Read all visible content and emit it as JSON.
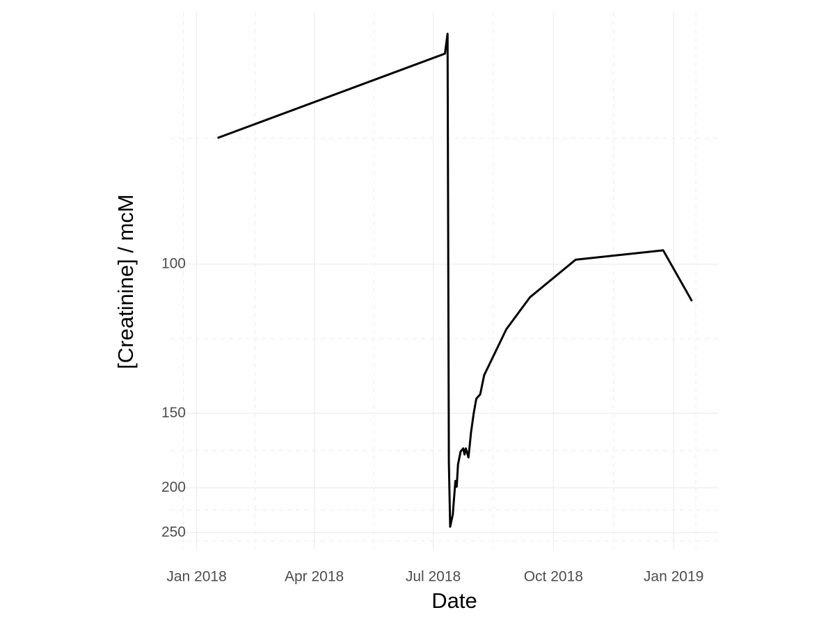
{
  "chart_data": {
    "type": "line",
    "x_label": "Date",
    "y_label": "[Creatinine] / mcM",
    "y_transform": "reciprocal",
    "grid": true,
    "x": [
      "2018-01-17",
      "2018-07-10",
      "2018-07-12",
      "2018-07-13",
      "2018-07-14",
      "2018-07-16",
      "2018-07-18",
      "2018-07-19",
      "2018-07-20",
      "2018-07-22",
      "2018-07-24",
      "2018-07-25",
      "2018-07-26",
      "2018-07-28",
      "2018-07-30",
      "2018-08-01",
      "2018-08-03",
      "2018-08-06",
      "2018-08-09",
      "2018-08-26",
      "2018-09-13",
      "2018-10-18",
      "2018-12-24",
      "2019-01-15"
    ],
    "series": [
      {
        "name": "Creatinine",
        "color": "#000000",
        "values": [
          78,
          68,
          66,
          179,
          242,
          227,
          194,
          199,
          181,
          172,
          170,
          174,
          170,
          176,
          160,
          150,
          143,
          141,
          133,
          117,
          108,
          99,
          97,
          109
        ]
      }
    ],
    "xlim": [
      "2017-12-12",
      "2019-02-04"
    ],
    "xticks": [
      {
        "value": "2018-01-01",
        "label": "Jan 2018"
      },
      {
        "value": "2018-04-01",
        "label": "Apr 2018"
      },
      {
        "value": "2018-07-01",
        "label": "Jul 2018"
      },
      {
        "value": "2018-10-01",
        "label": "Oct 2018"
      },
      {
        "value": "2019-01-01",
        "label": "Jan 2019"
      }
    ],
    "ylim": [
      276,
      64
    ],
    "yticks": [
      100,
      150,
      200,
      250
    ]
  }
}
